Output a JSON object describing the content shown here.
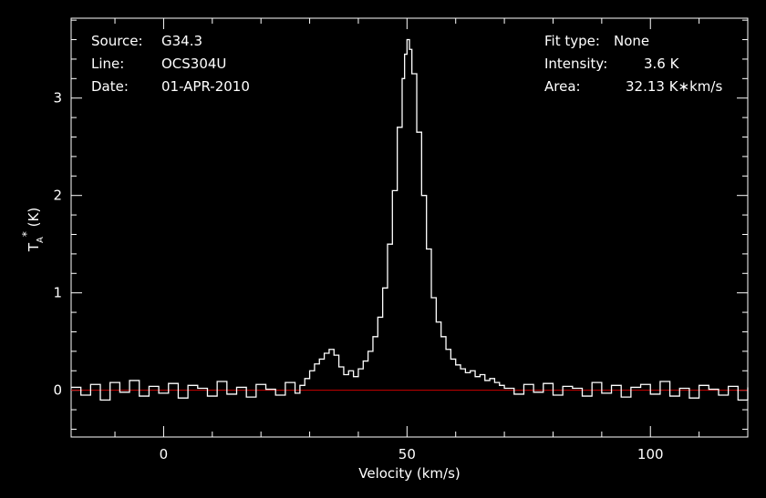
{
  "info_left": [
    {
      "key": "Source:",
      "value": "G34.3"
    },
    {
      "key": "Line:",
      "value": "OCS304U"
    },
    {
      "key": "Date:",
      "value": "01-APR-2010"
    }
  ],
  "info_right": [
    {
      "key": "Fit type:",
      "value": "None"
    },
    {
      "key": "Intensity:",
      "value": "3.6 K"
    },
    {
      "key": "Area:",
      "value": "32.13 K∗km/s"
    }
  ],
  "colors": {
    "background": "#000000",
    "axes": "#ffffff",
    "spectrum": "#ffffff",
    "baseline": "#cc0000"
  },
  "chart_data": {
    "type": "line",
    "title": "",
    "xlabel": "Velocity (km/s)",
    "ylabel_main": "T",
    "ylabel_sub": "A",
    "ylabel_sup": "*",
    "ylabel_unit": " (K)",
    "xlim": [
      -19,
      120
    ],
    "ylim": [
      -0.48,
      3.82
    ],
    "xticks": [
      0,
      50,
      100
    ],
    "yticks": [
      0,
      1,
      2,
      3
    ],
    "grid": false,
    "legend": "none",
    "baseline": {
      "y": 0,
      "color": "#cc0000"
    },
    "series": [
      {
        "x": [
          -19,
          -17,
          -15,
          -13,
          -11,
          -9,
          -7,
          -5,
          -3,
          -1,
          1,
          3,
          5,
          7,
          9,
          11,
          13,
          15,
          17,
          19,
          21,
          23,
          25,
          27,
          28,
          29,
          30,
          31,
          32,
          33,
          34,
          35,
          36,
          37,
          38,
          39,
          40,
          41,
          42,
          43,
          44,
          45,
          46,
          47,
          48,
          49,
          49.5,
          50,
          50.5,
          51,
          52,
          53,
          54,
          55,
          56,
          57,
          58,
          59,
          60,
          61,
          62,
          63,
          64,
          65,
          66,
          67,
          68,
          69,
          70,
          72,
          74,
          76,
          78,
          80,
          82,
          84,
          86,
          88,
          90,
          92,
          94,
          96,
          98,
          100,
          102,
          104,
          106,
          108,
          110,
          112,
          114,
          116,
          118,
          120
        ],
        "y": [
          0.03,
          -0.05,
          0.06,
          -0.1,
          0.08,
          -0.02,
          0.1,
          -0.06,
          0.04,
          -0.03,
          0.07,
          -0.08,
          0.05,
          0.02,
          -0.06,
          0.09,
          -0.04,
          0.03,
          -0.07,
          0.06,
          0.01,
          -0.05,
          0.08,
          -0.03,
          0.05,
          0.12,
          0.2,
          0.27,
          0.32,
          0.38,
          0.42,
          0.36,
          0.24,
          0.16,
          0.2,
          0.14,
          0.22,
          0.3,
          0.4,
          0.55,
          0.75,
          1.05,
          1.5,
          2.05,
          2.7,
          3.2,
          3.45,
          3.6,
          3.5,
          3.25,
          2.65,
          2.0,
          1.45,
          0.95,
          0.7,
          0.55,
          0.42,
          0.32,
          0.26,
          0.22,
          0.18,
          0.2,
          0.14,
          0.16,
          0.1,
          0.12,
          0.08,
          0.05,
          0.02,
          -0.04,
          0.06,
          -0.02,
          0.07,
          -0.05,
          0.04,
          0.02,
          -0.06,
          0.08,
          -0.03,
          0.05,
          -0.07,
          0.03,
          0.06,
          -0.04,
          0.09,
          -0.06,
          0.02,
          -0.08,
          0.05,
          0.01,
          -0.05,
          0.04,
          -0.1,
          0.03
        ]
      }
    ]
  }
}
